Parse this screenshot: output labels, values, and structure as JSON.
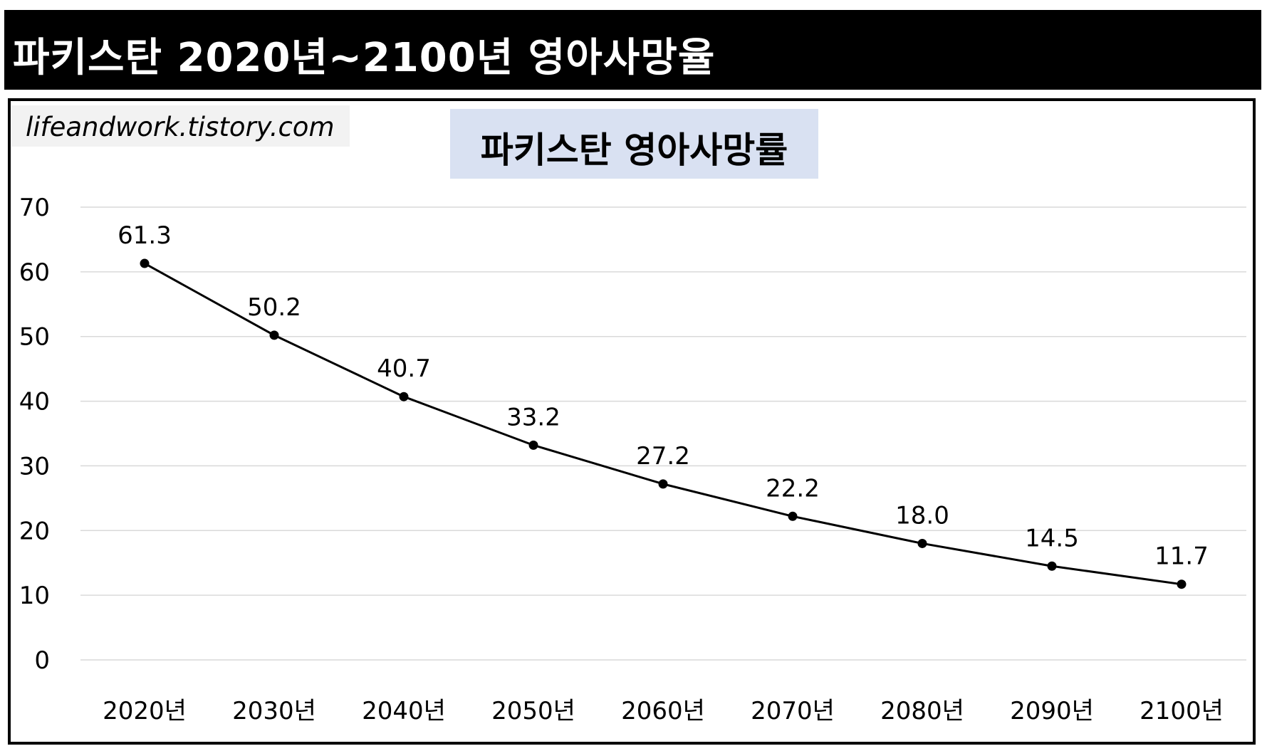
{
  "banner": {
    "title": "파키스탄 2020년~2100년 영아사망율"
  },
  "watermark": {
    "text": "lifeandwork.tistory.com"
  },
  "chart_data": {
    "type": "line",
    "title": "파키스탄 영아사망률",
    "xlabel": "",
    "ylabel": "",
    "categories": [
      "2020년",
      "2030년",
      "2040년",
      "2050년",
      "2060년",
      "2070년",
      "2080년",
      "2090년",
      "2100년"
    ],
    "series": [
      {
        "values": [
          61.3,
          50.2,
          40.7,
          33.2,
          27.2,
          22.2,
          18.0,
          14.5,
          11.7
        ]
      }
    ],
    "data_labels": [
      "61.3",
      "50.2",
      "40.7",
      "33.2",
      "27.2",
      "22.2",
      "18.0",
      "14.5",
      "11.7"
    ],
    "ylim": [
      0,
      70
    ],
    "yticks": [
      0,
      10,
      20,
      30,
      40,
      50,
      60,
      70
    ],
    "grid": true,
    "legend": "none",
    "colors": {
      "line": "#000000",
      "marker": "#000000",
      "grid": "#d9d9d9",
      "title_bg": "#d9e1f2"
    }
  }
}
